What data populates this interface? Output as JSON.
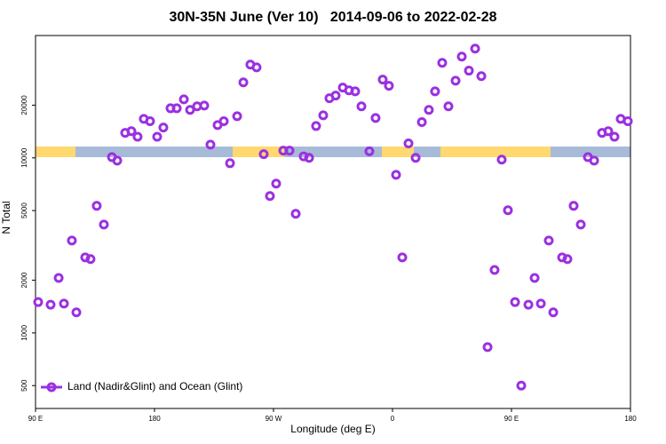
{
  "chart_data": {
    "type": "scatter",
    "title": "30N-35N June (Ver 10)   2014-09-06 to 2022-02-28",
    "xlabel": "Longitude (deg E)",
    "ylabel": "N Total",
    "log_y": true,
    "legend": "lower left",
    "xlim": [
      90,
      540
    ],
    "ylim": [
      370,
      50000
    ],
    "xticks": [
      {
        "value": 90,
        "label": "90 E"
      },
      {
        "value": 180,
        "label": "180"
      },
      {
        "value": 270,
        "label": "90 W"
      },
      {
        "value": 360,
        "label": "0"
      },
      {
        "value": 450,
        "label": "90 E"
      },
      {
        "value": 540,
        "label": "180"
      }
    ],
    "yticks": [
      500,
      1000,
      2000,
      5000,
      10000,
      20000
    ],
    "series": [
      {
        "name": "Land (Nadir&Glint) and Ocean (Glint)",
        "color": "#9b30e0",
        "x": [
          92.0,
          101.4,
          107.5,
          111.5,
          117.5,
          120.9,
          127.6,
          131.6,
          136.3,
          141.7,
          147.8,
          151.8,
          157.8,
          162.5,
          167.2,
          171.9,
          176.6,
          182.0,
          186.7,
          192.1,
          196.8,
          202.2,
          206.9,
          212.2,
          217.6,
          222.3,
          227.7,
          232.4,
          237.1,
          242.5,
          247.2,
          252.5,
          257.2,
          262.6,
          267.3,
          272.0,
          277.4,
          282.1,
          286.8,
          292.8,
          296.9,
          302.2,
          307.6,
          312.3,
          317.0,
          322.4,
          327.1,
          331.8,
          336.5,
          342.5,
          347.2,
          352.6,
          357.3,
          362.7,
          367.4,
          372.1,
          377.5,
          382.2,
          387.5,
          392.2,
          397.6,
          402.3,
          407.7,
          412.4,
          417.8,
          422.5,
          427.2,
          431.9,
          437.2,
          442.6,
          447.3,
          452.7,
          457.4,
          462.8,
          467.5,
          472.2,
          478.2,
          481.6,
          488.3,
          492.3,
          497.0,
          502.4,
          507.8,
          512.5,
          518.5,
          523.2,
          527.9,
          532.6,
          538.0
        ],
        "values": [
          1500,
          1450,
          2060,
          1470,
          3370,
          1310,
          2700,
          2640,
          5320,
          4160,
          10100,
          9650,
          13900,
          14200,
          13200,
          16700,
          16200,
          13200,
          14900,
          19200,
          19200,
          21600,
          18800,
          19700,
          19900,
          11900,
          15400,
          16200,
          9320,
          17300,
          27000,
          34100,
          32900,
          10500,
          6050,
          7130,
          11000,
          11000,
          4790,
          10200,
          10000,
          15200,
          17500,
          21900,
          22700,
          25200,
          24300,
          24000,
          19700,
          10900,
          16900,
          28000,
          25800,
          8000,
          2700,
          12100,
          10000,
          16000,
          18800,
          24000,
          34900,
          19700,
          27600,
          37900,
          31500,
          42100,
          29300,
          830,
          2290,
          9770,
          5020,
          1500,
          500,
          1450,
          2060,
          1470,
          3370,
          1310,
          2700,
          2640,
          5320,
          4160,
          10100,
          9650,
          13900,
          14200,
          13200,
          16700,
          16200
        ]
      }
    ]
  }
}
